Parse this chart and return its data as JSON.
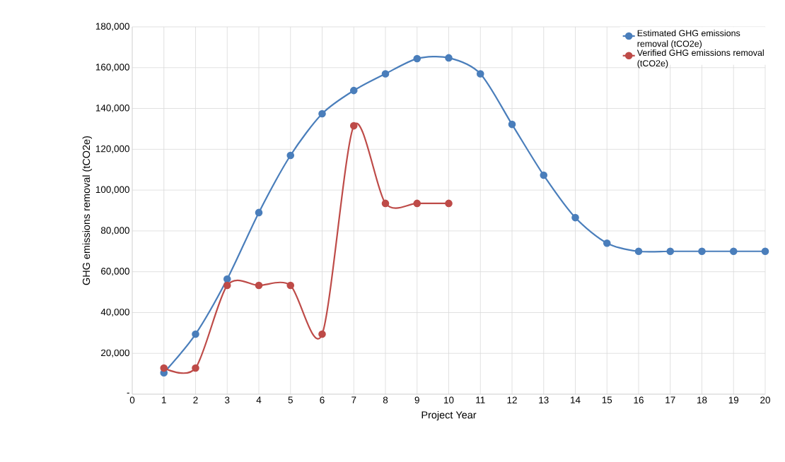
{
  "chart_data": {
    "type": "line",
    "xlabel": "Project Year",
    "ylabel": "GHG emissions removal (tCO2e)",
    "xlim": [
      0,
      20
    ],
    "xticks": [
      0,
      1,
      2,
      3,
      4,
      5,
      6,
      7,
      8,
      9,
      10,
      11,
      12,
      13,
      14,
      15,
      16,
      17,
      18,
      19,
      20
    ],
    "ylim": [
      0,
      180000
    ],
    "yticks": [
      {
        "value": 0,
        "label": "-"
      },
      {
        "value": 20000,
        "label": "20,000"
      },
      {
        "value": 40000,
        "label": "40,000"
      },
      {
        "value": 60000,
        "label": "60,000"
      },
      {
        "value": 80000,
        "label": "80,000"
      },
      {
        "value": 100000,
        "label": "100,000"
      },
      {
        "value": 120000,
        "label": "120,000"
      },
      {
        "value": 140000,
        "label": "140,000"
      },
      {
        "value": 160000,
        "label": "160,000"
      },
      {
        "value": 180000,
        "label": "180,000"
      }
    ],
    "grid": true,
    "legend": "top right",
    "marker": "circle",
    "line_style": "solid",
    "series": [
      {
        "name": "Estimated GHG emissions removal (tCO2e)",
        "color": "#4a7ebb",
        "x": [
          1,
          2,
          3,
          4,
          5,
          6,
          7,
          8,
          9,
          10,
          11,
          12,
          13,
          14,
          15,
          16,
          17,
          18,
          19,
          20
        ],
        "values": [
          10500,
          29400,
          56400,
          89000,
          117000,
          137400,
          148800,
          157000,
          164400,
          164800,
          157000,
          132200,
          107300,
          86500,
          74000,
          70000,
          70000,
          70000,
          70000,
          70000
        ]
      },
      {
        "name": "Verified GHG emissions removal (tCO2e)",
        "color": "#be4b48",
        "x": [
          1,
          2,
          3,
          4,
          5,
          6,
          7,
          8,
          9,
          10
        ],
        "values": [
          12800,
          12800,
          53300,
          53300,
          53300,
          29400,
          131500,
          93500,
          93500,
          93500
        ]
      }
    ]
  }
}
